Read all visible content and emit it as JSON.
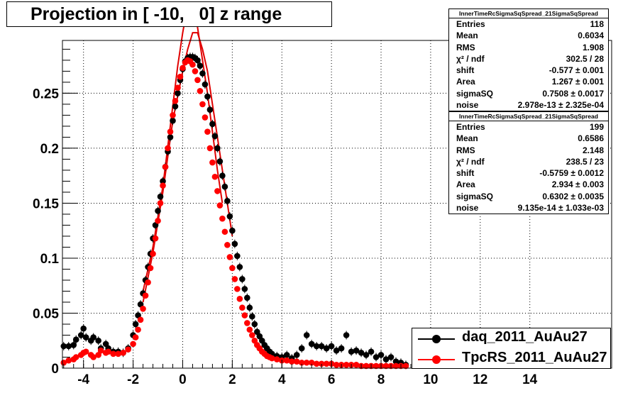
{
  "chart_data": {
    "type": "scatter",
    "title": "Projection in [ -10,   0] z range",
    "xlim": [
      -4.85,
      17.3
    ],
    "ylim": [
      0,
      0.298
    ],
    "x_ticks": [
      "-4",
      "-2",
      "0",
      "2",
      "4",
      "6",
      "8",
      "10",
      "12",
      "14"
    ],
    "x_tick_values": [
      -4,
      -2,
      0,
      2,
      4,
      6,
      8,
      10,
      12,
      14
    ],
    "y_ticks": [
      "0",
      "0.05",
      "0.1",
      "0.15",
      "0.2",
      "0.25"
    ],
    "y_tick_values": [
      0,
      0.05,
      0.1,
      0.15,
      0.2,
      0.25
    ],
    "grid": true,
    "legend_position": "bottom-right",
    "series": [
      {
        "name": "daq_2011_AuAu27",
        "color": "#000000",
        "x": [
          -4.8,
          -4.6,
          -4.4,
          -4.3,
          -4.1,
          -4.0,
          -3.9,
          -3.7,
          -3.6,
          -3.4,
          -3.3,
          -3.1,
          -3.0,
          -2.8,
          -2.6,
          -2.4,
          -2.2,
          -2.0,
          -1.9,
          -1.8,
          -1.7,
          -1.6,
          -1.5,
          -1.4,
          -1.3,
          -1.2,
          -1.1,
          -1.0,
          -0.9,
          -0.8,
          -0.7,
          -0.6,
          -0.5,
          -0.4,
          -0.3,
          -0.2,
          -0.1,
          0.0,
          0.1,
          0.2,
          0.3,
          0.4,
          0.5,
          0.6,
          0.7,
          0.8,
          0.9,
          1.0,
          1.1,
          1.2,
          1.3,
          1.4,
          1.5,
          1.6,
          1.7,
          1.8,
          1.9,
          2.0,
          2.1,
          2.2,
          2.3,
          2.4,
          2.5,
          2.6,
          2.7,
          2.8,
          2.9,
          3.0,
          3.1,
          3.2,
          3.3,
          3.4,
          3.5,
          3.6,
          3.8,
          4.0,
          4.2,
          4.4,
          4.6,
          4.8,
          5.0,
          5.2,
          5.4,
          5.6,
          5.8,
          6.0,
          6.2,
          6.4,
          6.6,
          6.8,
          7.0,
          7.2,
          7.4,
          7.6,
          7.8,
          8.0,
          8.2,
          8.4,
          8.6,
          8.8,
          9.0
        ],
        "y": [
          0.02,
          0.02,
          0.021,
          0.026,
          0.03,
          0.036,
          0.028,
          0.025,
          0.028,
          0.025,
          0.018,
          0.022,
          0.018,
          0.015,
          0.015,
          0.014,
          0.018,
          0.03,
          0.04,
          0.048,
          0.058,
          0.068,
          0.08,
          0.092,
          0.104,
          0.118,
          0.13,
          0.143,
          0.156,
          0.17,
          0.183,
          0.197,
          0.21,
          0.225,
          0.238,
          0.25,
          0.262,
          0.272,
          0.279,
          0.282,
          0.283,
          0.283,
          0.282,
          0.28,
          0.275,
          0.268,
          0.258,
          0.247,
          0.235,
          0.222,
          0.211,
          0.2,
          0.188,
          0.175,
          0.165,
          0.152,
          0.138,
          0.125,
          0.113,
          0.102,
          0.092,
          0.081,
          0.072,
          0.064,
          0.055,
          0.047,
          0.04,
          0.033,
          0.029,
          0.025,
          0.021,
          0.018,
          0.015,
          0.013,
          0.011,
          0.01,
          0.012,
          0.009,
          0.012,
          0.018,
          0.03,
          0.022,
          0.02,
          0.02,
          0.018,
          0.02,
          0.016,
          0.018,
          0.03,
          0.015,
          0.016,
          0.014,
          0.012,
          0.015,
          0.01,
          0.012,
          0.008,
          0.01,
          0.006,
          0.005,
          0.003
        ]
      },
      {
        "name": "TpcRS_2011_AuAu27",
        "color": "#ff0000",
        "x": [
          -4.8,
          -4.6,
          -4.4,
          -4.3,
          -4.1,
          -4.0,
          -3.9,
          -3.7,
          -3.6,
          -3.4,
          -3.3,
          -3.1,
          -3.0,
          -2.8,
          -2.6,
          -2.4,
          -2.2,
          -2.0,
          -1.9,
          -1.8,
          -1.7,
          -1.6,
          -1.5,
          -1.4,
          -1.3,
          -1.2,
          -1.1,
          -1.0,
          -0.9,
          -0.8,
          -0.7,
          -0.6,
          -0.5,
          -0.4,
          -0.3,
          -0.2,
          -0.1,
          0.0,
          0.1,
          0.2,
          0.3,
          0.4,
          0.5,
          0.6,
          0.7,
          0.8,
          0.9,
          1.0,
          1.1,
          1.2,
          1.3,
          1.4,
          1.5,
          1.6,
          1.7,
          1.8,
          1.9,
          2.0,
          2.1,
          2.2,
          2.3,
          2.4,
          2.5,
          2.6,
          2.7,
          2.8,
          2.9,
          3.0,
          3.1,
          3.2,
          3.3,
          3.4,
          3.5,
          3.6,
          3.8,
          4.0,
          4.2,
          4.4,
          4.6,
          4.8,
          5.0,
          5.2,
          5.4,
          5.6,
          5.8,
          6.0,
          6.2,
          6.4,
          6.6,
          6.8,
          7.0,
          7.2,
          7.4,
          7.6,
          7.8,
          8.0,
          8.2,
          8.4,
          8.6,
          8.8,
          9.0
        ],
        "y": [
          0.005,
          0.007,
          0.008,
          0.01,
          0.012,
          0.014,
          0.015,
          0.012,
          0.01,
          0.012,
          0.016,
          0.014,
          0.015,
          0.013,
          0.013,
          0.014,
          0.017,
          0.022,
          0.028,
          0.035,
          0.044,
          0.054,
          0.066,
          0.078,
          0.091,
          0.104,
          0.118,
          0.134,
          0.15,
          0.166,
          0.183,
          0.2,
          0.215,
          0.23,
          0.243,
          0.255,
          0.265,
          0.273,
          0.278,
          0.28,
          0.279,
          0.276,
          0.27,
          0.262,
          0.252,
          0.24,
          0.228,
          0.215,
          0.2,
          0.187,
          0.174,
          0.161,
          0.148,
          0.136,
          0.124,
          0.112,
          0.101,
          0.091,
          0.081,
          0.072,
          0.063,
          0.055,
          0.048,
          0.041,
          0.035,
          0.03,
          0.025,
          0.021,
          0.018,
          0.015,
          0.013,
          0.011,
          0.01,
          0.009,
          0.008,
          0.007,
          0.007,
          0.006,
          0.006,
          0.005,
          0.005,
          0.005,
          0.004,
          0.004,
          0.004,
          0.004,
          0.003,
          0.003,
          0.003,
          0.003,
          0.003,
          0.002,
          0.002,
          0.002,
          0.002,
          0.002,
          0.002,
          0.002,
          0.002,
          0.002,
          0.002
        ]
      }
    ],
    "fit_curves": [
      {
        "x": [
          -1.6,
          -1.2,
          -0.8,
          -0.4,
          0.0,
          0.2,
          0.4,
          0.6,
          0.8,
          1.0,
          1.2,
          1.4,
          1.6,
          1.8,
          2.0
        ],
        "y": [
          0.06,
          0.105,
          0.16,
          0.225,
          0.27,
          0.29,
          0.305,
          0.305,
          0.29,
          0.27,
          0.24,
          0.21,
          0.18,
          0.15,
          0.12
        ]
      },
      {
        "x": [
          -1.6,
          -1.2,
          -0.8,
          -0.5,
          -0.2,
          0.0,
          0.2,
          0.4,
          0.6,
          0.8,
          1.0,
          1.2,
          1.4,
          1.6
        ],
        "y": [
          0.07,
          0.11,
          0.165,
          0.22,
          0.275,
          0.305,
          0.33,
          0.33,
          0.31,
          0.28,
          0.25,
          0.215,
          0.18,
          0.15
        ]
      }
    ]
  },
  "stats_boxes": [
    {
      "title": "InnerTimeRcSigmaSqSpread_21SigmaSqSpread",
      "rows": [
        {
          "label": "Entries",
          "value": "118"
        },
        {
          "label": "Mean",
          "value": "0.6034"
        },
        {
          "label": "RMS",
          "value": "1.908"
        },
        {
          "label": "χ² / ndf",
          "value": "302.5 / 28"
        },
        {
          "label": "shift",
          "value": "-0.577 ± 0.001"
        },
        {
          "label": "Area",
          "value": "1.267 ± 0.001"
        },
        {
          "label": "sigmaSQ",
          "value": "0.7508 ± 0.0017"
        },
        {
          "label": "noise",
          "value": "2.978e-13 ± 2.325e-04"
        }
      ]
    },
    {
      "title": "InnerTimeRcSigmaSqSpread_21SigmaSqSpread",
      "rows": [
        {
          "label": "Entries",
          "value": "199"
        },
        {
          "label": "Mean",
          "value": "0.6586"
        },
        {
          "label": "RMS",
          "value": "2.148"
        },
        {
          "label": "χ² / ndf",
          "value": "238.5 / 23"
        },
        {
          "label": "shift",
          "value": "-0.5759 ± 0.0012"
        },
        {
          "label": "Area",
          "value": "2.934 ± 0.003"
        },
        {
          "label": "sigmaSQ",
          "value": "0.6302 ± 0.0035"
        },
        {
          "label": "noise",
          "value": "9.135e-14 ± 1.033e-03"
        }
      ]
    }
  ]
}
